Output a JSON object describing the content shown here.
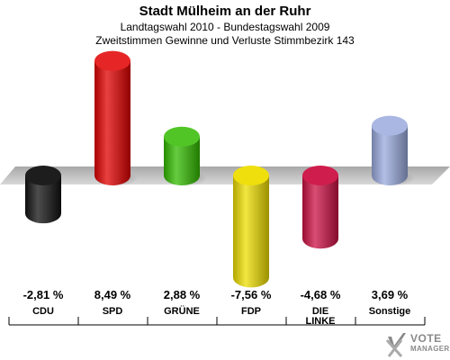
{
  "header": {
    "title": "Stadt Mülheim an der Ruhr",
    "subtitle1": "Landtagswahl 2010 - Bundestagswahl 2009",
    "subtitle2": "Zweitstimmen Gewinne und Verluste Stimmbezirk 143"
  },
  "logo": {
    "line1": "VOTE",
    "line2": "MANAGER"
  },
  "chart_data": {
    "type": "bar",
    "categories": [
      "CDU",
      "SPD",
      "GRÜNE",
      "FDP",
      "DIE LINKE",
      "Sonstige"
    ],
    "values": [
      -2.81,
      8.49,
      2.88,
      -7.56,
      -4.68,
      3.69
    ],
    "value_labels": [
      "-2,81 %",
      "8,49 %",
      "2,88 %",
      "-7,56 %",
      "-4,68 %",
      "3,69 %"
    ],
    "colors": [
      "#111111",
      "#e10000",
      "#33bb00",
      "#eedd00",
      "#cc1144",
      "#9aaadd"
    ],
    "grid": false,
    "legend": "none"
  }
}
